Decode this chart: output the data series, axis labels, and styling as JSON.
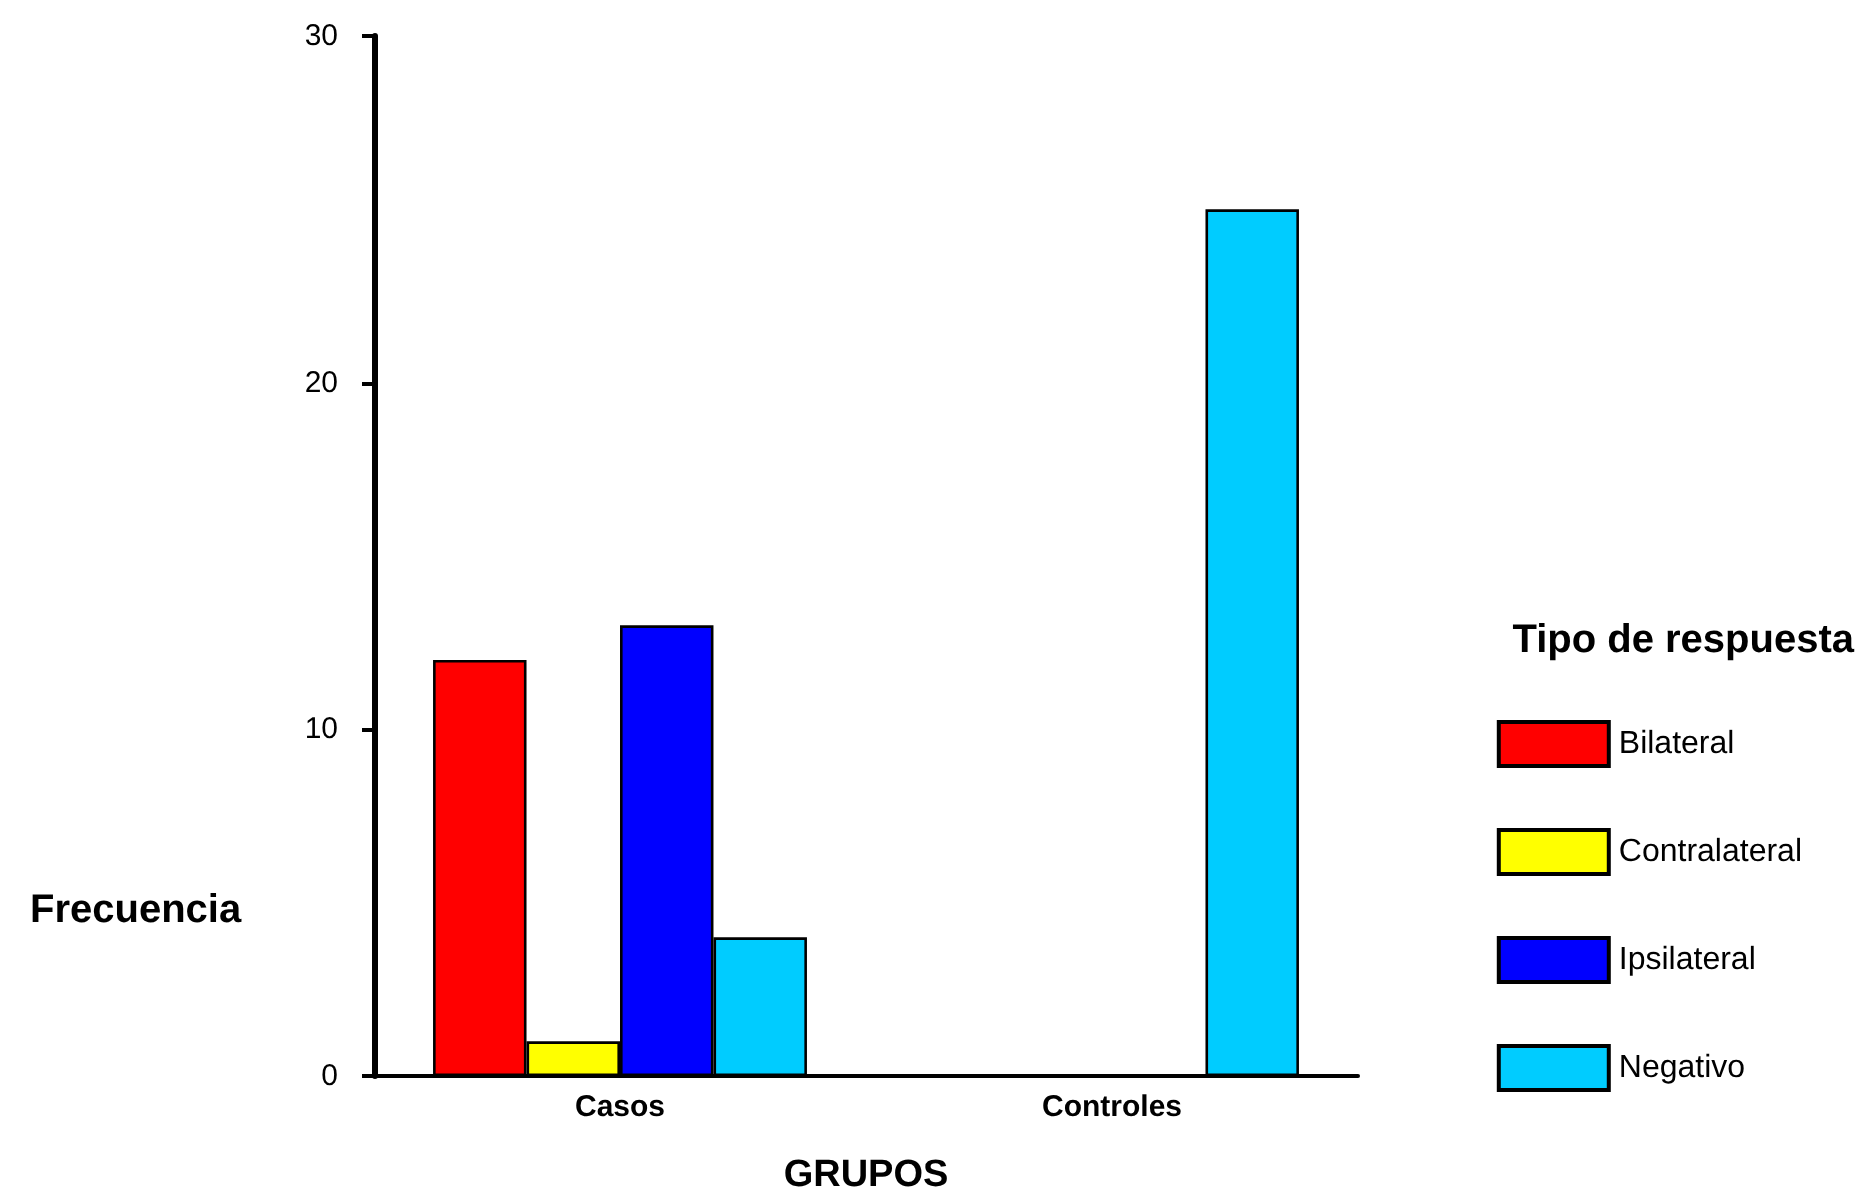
{
  "chart_data": {
    "type": "bar",
    "xlabel": "GRUPOS",
    "ylabel": "Frecuencia",
    "legend_title": "Tipo de respuesta",
    "categories": [
      "Casos",
      "Controles"
    ],
    "series": [
      {
        "name": "Bilateral",
        "color": "#ff0000",
        "values": [
          12,
          0
        ]
      },
      {
        "name": "Contralateral",
        "color": "#ffff00",
        "values": [
          1,
          0
        ]
      },
      {
        "name": "Ipsilateral",
        "color": "#0000ff",
        "values": [
          13,
          0
        ]
      },
      {
        "name": "Negativo",
        "color": "#00ccff",
        "values": [
          4,
          25
        ]
      }
    ],
    "ylim": [
      0,
      30
    ],
    "yticks": [
      0,
      10,
      20,
      30
    ],
    "grid": false,
    "legend": "right"
  }
}
